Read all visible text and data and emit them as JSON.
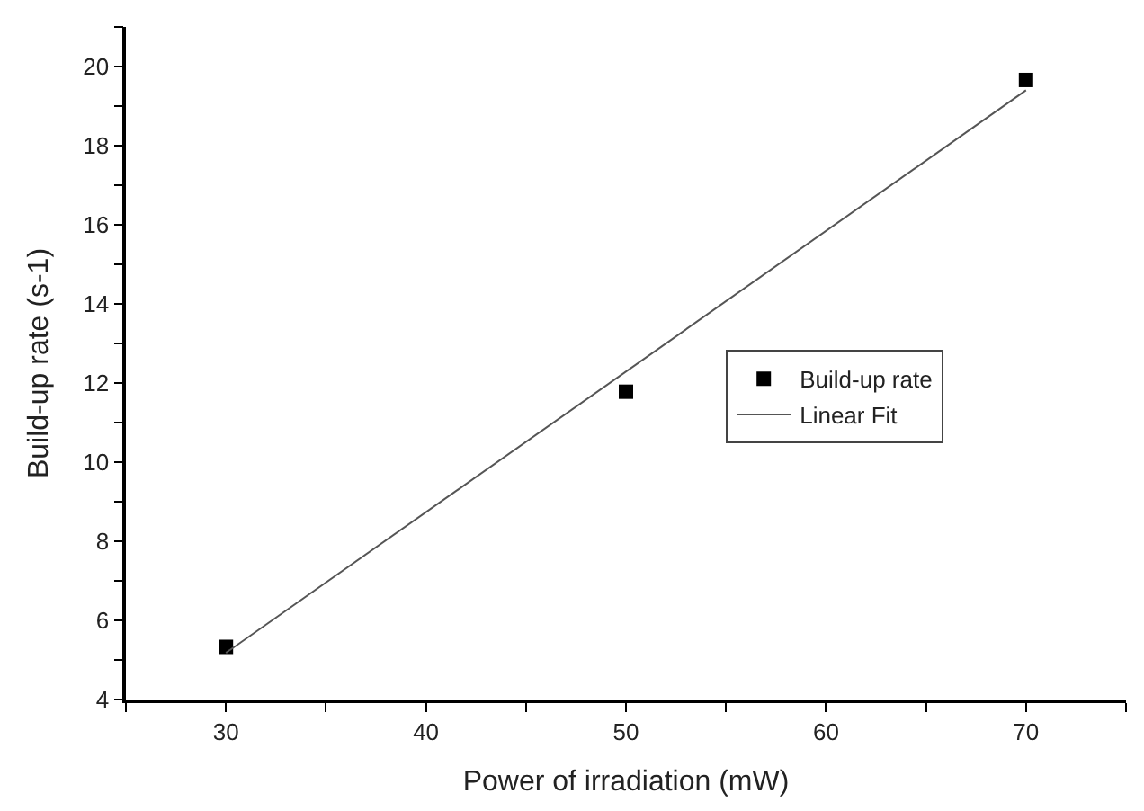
{
  "chart_data": {
    "type": "scatter",
    "xlabel": "Power of irradiation (mW)",
    "ylabel": "Build-up rate (s-1)",
    "xlim": [
      25,
      75
    ],
    "ylim": [
      4,
      21
    ],
    "xticks": [
      {
        "value": 25,
        "label": null
      },
      30,
      {
        "value": 35,
        "label": null
      },
      40,
      {
        "value": 45,
        "label": null
      },
      50,
      {
        "value": 55,
        "label": null
      },
      60,
      {
        "value": 65,
        "label": null
      },
      70,
      {
        "value": 75,
        "label": null
      }
    ],
    "yticks": [
      4,
      {
        "value": 5,
        "label": null
      },
      6,
      {
        "value": 7,
        "label": null
      },
      8,
      {
        "value": 9,
        "label": null
      },
      10,
      {
        "value": 11,
        "label": null
      },
      12,
      {
        "value": 13,
        "label": null
      },
      14,
      {
        "value": 15,
        "label": null
      },
      16,
      {
        "value": 17,
        "label": null
      },
      18,
      {
        "value": 19,
        "label": null
      },
      20,
      {
        "value": 21,
        "label": null
      }
    ],
    "legend": "right",
    "series": [
      {
        "name": "Build-up rate",
        "marker": "square",
        "color": "#000000",
        "x": [
          30,
          50,
          70
        ],
        "values": [
          5.33,
          11.78,
          19.66
        ]
      },
      {
        "name": "Linear Fit",
        "type": "line",
        "marker": "none",
        "line_style": "solid",
        "color": "#555555",
        "x": [
          30,
          70
        ],
        "values": [
          5.18,
          19.4
        ]
      }
    ]
  }
}
